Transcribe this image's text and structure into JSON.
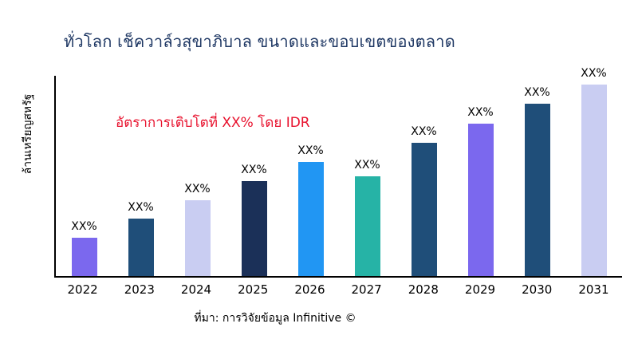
{
  "chart_data": {
    "type": "bar",
    "title": "ทั่วโลก เช็ควาล์วสุขาภิบาล ขนาดและขอบเขตของตลาด",
    "ylabel": "ล้านเหรียญสหรัฐ",
    "xlabel": "",
    "categories": [
      "2022",
      "2023",
      "2024",
      "2025",
      "2026",
      "2027",
      "2028",
      "2029",
      "2030",
      "2031"
    ],
    "values": [
      46,
      68,
      90,
      113,
      136,
      119,
      158,
      181,
      205,
      228
    ],
    "bar_labels": [
      "XX%",
      "XX%",
      "XX%",
      "XX%",
      "XX%",
      "XX%",
      "XX%",
      "XX%",
      "XX%",
      "XX%"
    ],
    "bar_colors": [
      "#7b68ee",
      "#1f4e79",
      "#c9cdf2",
      "#1b3058",
      "#2196f3",
      "#26b3a6",
      "#1f4e79",
      "#7b68ee",
      "#1f4e79",
      "#c9cdf2"
    ],
    "ylim": [
      0,
      240
    ],
    "grid": false,
    "legend": "none",
    "annotation": {
      "text": "อัตราการเติบโตที่ XX% โดย IDR",
      "color": "#e8112d"
    },
    "source": "ที่มา: การวิจัยข้อมูล Infinitive ©"
  },
  "colors": {
    "title": "#1f3864",
    "annotation": "#e8112d",
    "axis": "#000000",
    "background": "#ffffff"
  }
}
